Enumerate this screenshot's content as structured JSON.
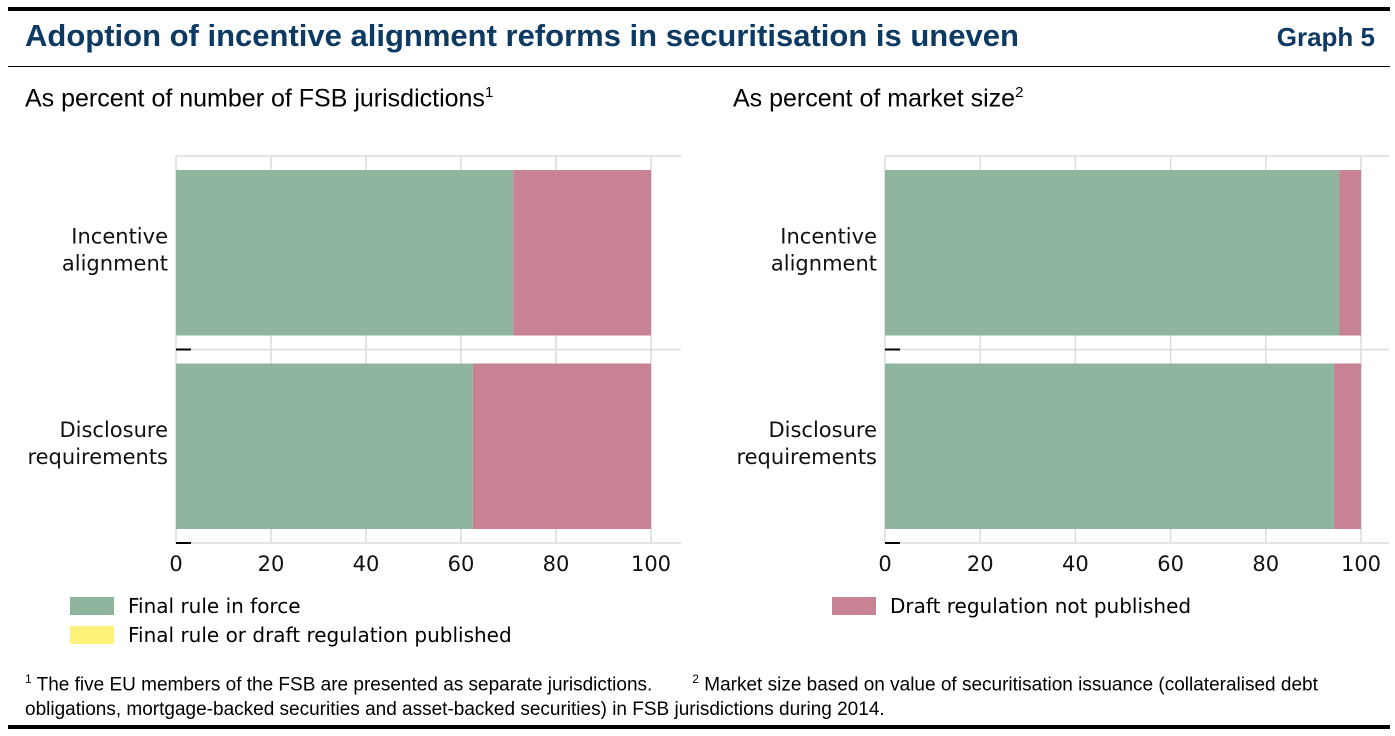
{
  "header": {
    "title": "Adoption of incentive alignment reforms in securitisation is uneven",
    "graph_number": "Graph 5"
  },
  "colors": {
    "final_rule": "#8fb59e",
    "published": "#fff27a",
    "draft": "#c78293",
    "title": "#0d3a63"
  },
  "chart_data": [
    {
      "type": "bar",
      "orientation": "horizontal",
      "stacked": true,
      "title": "As percent of number of FSB jurisdictions",
      "title_note": "1",
      "categories": [
        "Incentive alignment",
        "Disclosure requirements"
      ],
      "xlim": [
        0,
        100
      ],
      "xticks": [
        "0",
        "20",
        "40",
        "60",
        "80",
        "100"
      ],
      "grid": true,
      "series": [
        {
          "name": "Final rule in force",
          "values": [
            71,
            62.5
          ]
        },
        {
          "name": "Final rule or draft regulation published",
          "values": [
            0,
            0
          ]
        },
        {
          "name": "Draft regulation not published",
          "values": [
            29,
            37.5
          ]
        }
      ]
    },
    {
      "type": "bar",
      "orientation": "horizontal",
      "stacked": true,
      "title": "As percent of market size",
      "title_note": "2",
      "categories": [
        "Incentive alignment",
        "Disclosure requirements"
      ],
      "xlim": [
        0,
        100
      ],
      "xticks": [
        "0",
        "20",
        "40",
        "60",
        "80",
        "100"
      ],
      "grid": true,
      "series": [
        {
          "name": "Final rule in force",
          "values": [
            95.4,
            94.3
          ]
        },
        {
          "name": "Final rule or draft regulation published",
          "values": [
            0,
            0
          ]
        },
        {
          "name": "Draft regulation not published",
          "values": [
            4.6,
            5.7
          ]
        }
      ]
    }
  ],
  "category_labels": [
    [
      "Incentive",
      "alignment"
    ],
    [
      "Disclosure",
      "requirements"
    ]
  ],
  "legend": [
    "Final rule in force",
    "Final rule or draft regulation published",
    "Draft regulation not published"
  ],
  "footnotes": {
    "n1": "1",
    "t1": " The five EU members of the FSB are presented as separate jurisdictions.",
    "n2": "2",
    "t2": " Market size based on value of securitisation issuance (collateralised debt obligations, mortgage-backed securities and asset-backed securities) in FSB jurisdictions during 2014."
  }
}
